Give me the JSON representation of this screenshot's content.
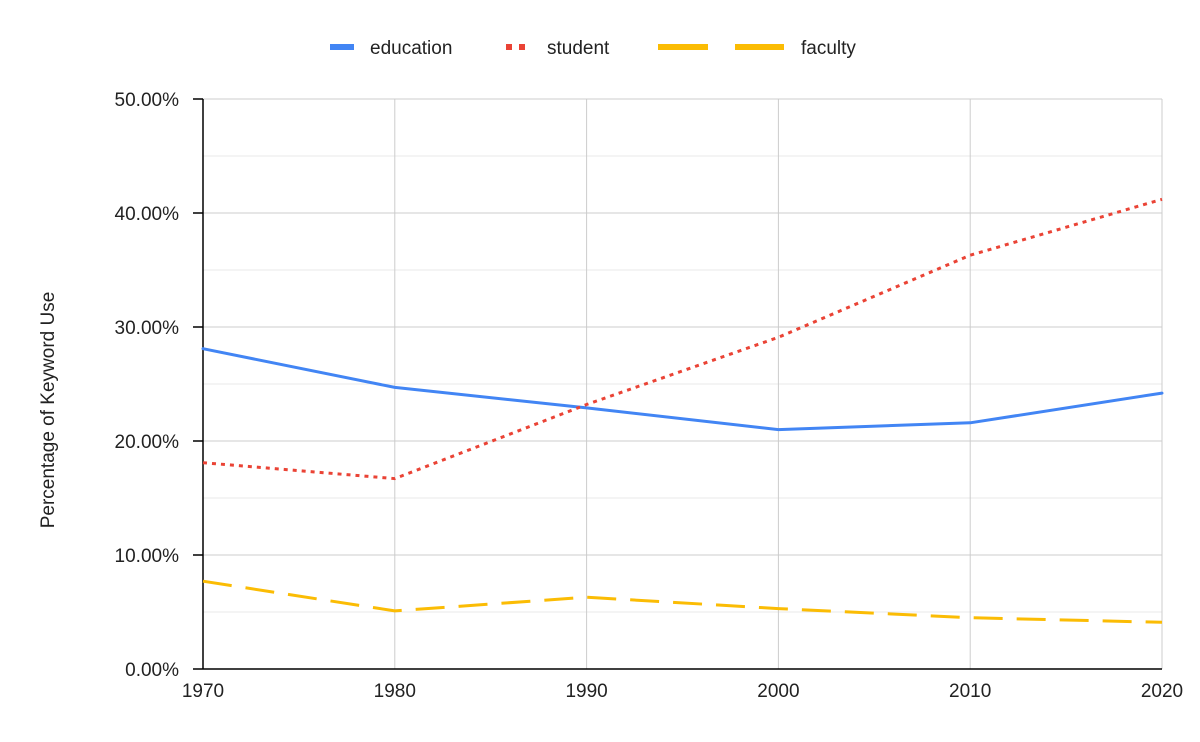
{
  "chart_data": {
    "type": "line",
    "title": "",
    "xlabel": "",
    "ylabel": "Percentage of Keyword Use",
    "x": [
      1970,
      1980,
      1990,
      2000,
      2010,
      2020
    ],
    "x_tick_labels": [
      "1970",
      "1980",
      "1990",
      "2000",
      "2010",
      "2020"
    ],
    "xlim": [
      1970,
      2020
    ],
    "ylim": [
      0,
      0.5
    ],
    "y_ticks": [
      0,
      0.1,
      0.2,
      0.3,
      0.4,
      0.5
    ],
    "y_tick_labels": [
      "0.00%",
      "10.00%",
      "20.00%",
      "30.00%",
      "40.00%",
      "50.00%"
    ],
    "y_minor_ticks": [
      0.05,
      0.15,
      0.25,
      0.35,
      0.45
    ],
    "grid": true,
    "legend_position": "top-center",
    "series": [
      {
        "name": "education",
        "color": "#4285F4",
        "line_style": "solid",
        "values": [
          0.281,
          0.247,
          0.229,
          0.21,
          0.216,
          0.242
        ]
      },
      {
        "name": "student",
        "color": "#EA4335",
        "line_style": "dotted",
        "values": [
          0.181,
          0.167,
          0.232,
          0.291,
          0.363,
          0.412
        ]
      },
      {
        "name": "faculty",
        "color": "#FBBC04",
        "line_style": "dashed",
        "values": [
          0.077,
          0.051,
          0.063,
          0.053,
          0.045,
          0.041
        ]
      }
    ]
  }
}
